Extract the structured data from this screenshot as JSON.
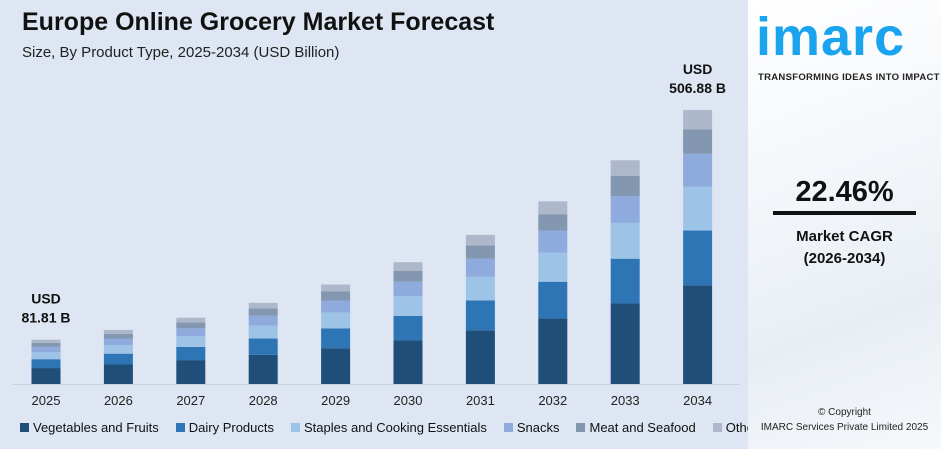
{
  "header": {
    "title": "Europe Online Grocery Market Forecast",
    "subtitle": "Size, By Product Type, 2025-2034 (USD Billion)"
  },
  "side": {
    "logo": "imarc",
    "tagline": "TRANSFORMING IDEAS INTO IMPACT",
    "cagr_value": "22.46%",
    "cagr_label": "Market CAGR",
    "cagr_period": "(2026-2034)",
    "copyright": "© Copyright",
    "company": "IMARC Services Private Limited 2025"
  },
  "chart_data": {
    "type": "bar",
    "stacked": true,
    "title": "Europe Online Grocery Market Forecast",
    "subtitle": "Size, By Product Type, 2025-2034 (USD Billion)",
    "categories": [
      "2025",
      "2026",
      "2027",
      "2028",
      "2029",
      "2030",
      "2031",
      "2032",
      "2033",
      "2034"
    ],
    "series": [
      {
        "name": "Vegetables and Fruits",
        "color": "#1f4e79",
        "values": [
          29.5,
          36.1,
          44.2,
          54.1,
          66.2,
          81.1,
          99.3,
          121.6,
          149.0,
          182.5
        ]
      },
      {
        "name": "Dairy Products",
        "color": "#2e75b6",
        "values": [
          16.4,
          20.0,
          24.5,
          30.0,
          36.8,
          45.1,
          55.2,
          67.6,
          82.8,
          101.4
        ]
      },
      {
        "name": "Staples and Cooking Essentials",
        "color": "#9dc3e6",
        "values": [
          13.1,
          16.0,
          19.6,
          24.0,
          29.4,
          36.0,
          44.1,
          54.1,
          66.2,
          81.1
        ]
      },
      {
        "name": "Snacks",
        "color": "#8faadc",
        "values": [
          9.8,
          12.0,
          14.7,
          18.0,
          22.1,
          27.0,
          33.1,
          40.5,
          49.7,
          60.8
        ]
      },
      {
        "name": "Meat and Seafood",
        "color": "#8497b0",
        "values": [
          7.4,
          9.0,
          11.0,
          13.5,
          16.6,
          20.3,
          24.8,
          30.4,
          37.2,
          45.6
        ]
      },
      {
        "name": "Others",
        "color": "#adb9ca",
        "values": [
          5.7,
          7.0,
          8.6,
          10.5,
          12.9,
          15.8,
          19.3,
          23.7,
          29.0,
          35.5
        ]
      }
    ],
    "annotations": [
      {
        "category": "2025",
        "line1": "USD",
        "line2": "81.81 B"
      },
      {
        "category": "2034",
        "line1": "USD",
        "line2": "506.88 B"
      }
    ],
    "grid": false,
    "legend": "bottom"
  }
}
